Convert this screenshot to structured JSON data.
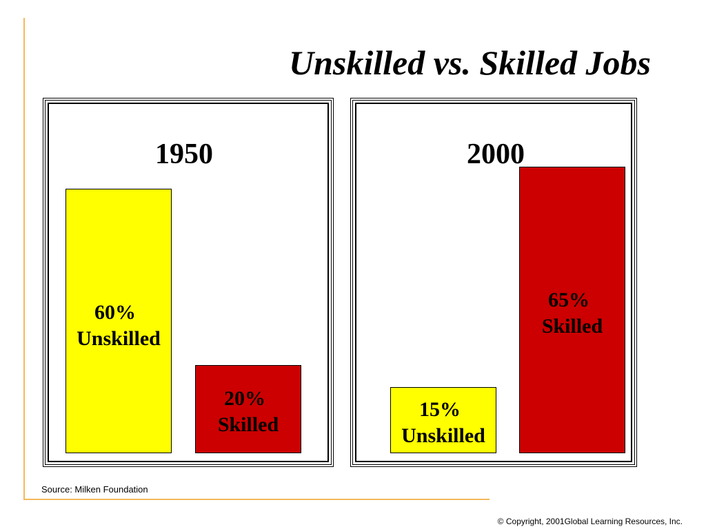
{
  "title": "Unskilled vs. Skilled Jobs",
  "source": "Source: Milken Foundation",
  "copyright": "© Copyright, 2001Global Learning Resources, Inc.",
  "colors": {
    "unskilled": "#ffff00",
    "skilled": "#cc0000",
    "accent_rule": "#f5b85a"
  },
  "chart_data": [
    {
      "type": "bar",
      "title": "1950",
      "categories": [
        "Unskilled",
        "Skilled"
      ],
      "values": [
        60,
        20
      ],
      "labels": [
        {
          "pct": "60%",
          "name": "Unskilled"
        },
        {
          "pct": "20%",
          "name": "Skilled"
        }
      ],
      "colors": [
        "#ffff00",
        "#cc0000"
      ],
      "ylim": [
        0,
        100
      ],
      "grid": false
    },
    {
      "type": "bar",
      "title": "2000",
      "categories": [
        "Unskilled",
        "Skilled"
      ],
      "values": [
        15,
        65
      ],
      "labels": [
        {
          "pct": "15%",
          "name": "Unskilled"
        },
        {
          "pct": "65%",
          "name": "Skilled"
        }
      ],
      "colors": [
        "#ffff00",
        "#cc0000"
      ],
      "ylim": [
        0,
        100
      ],
      "grid": false
    }
  ]
}
